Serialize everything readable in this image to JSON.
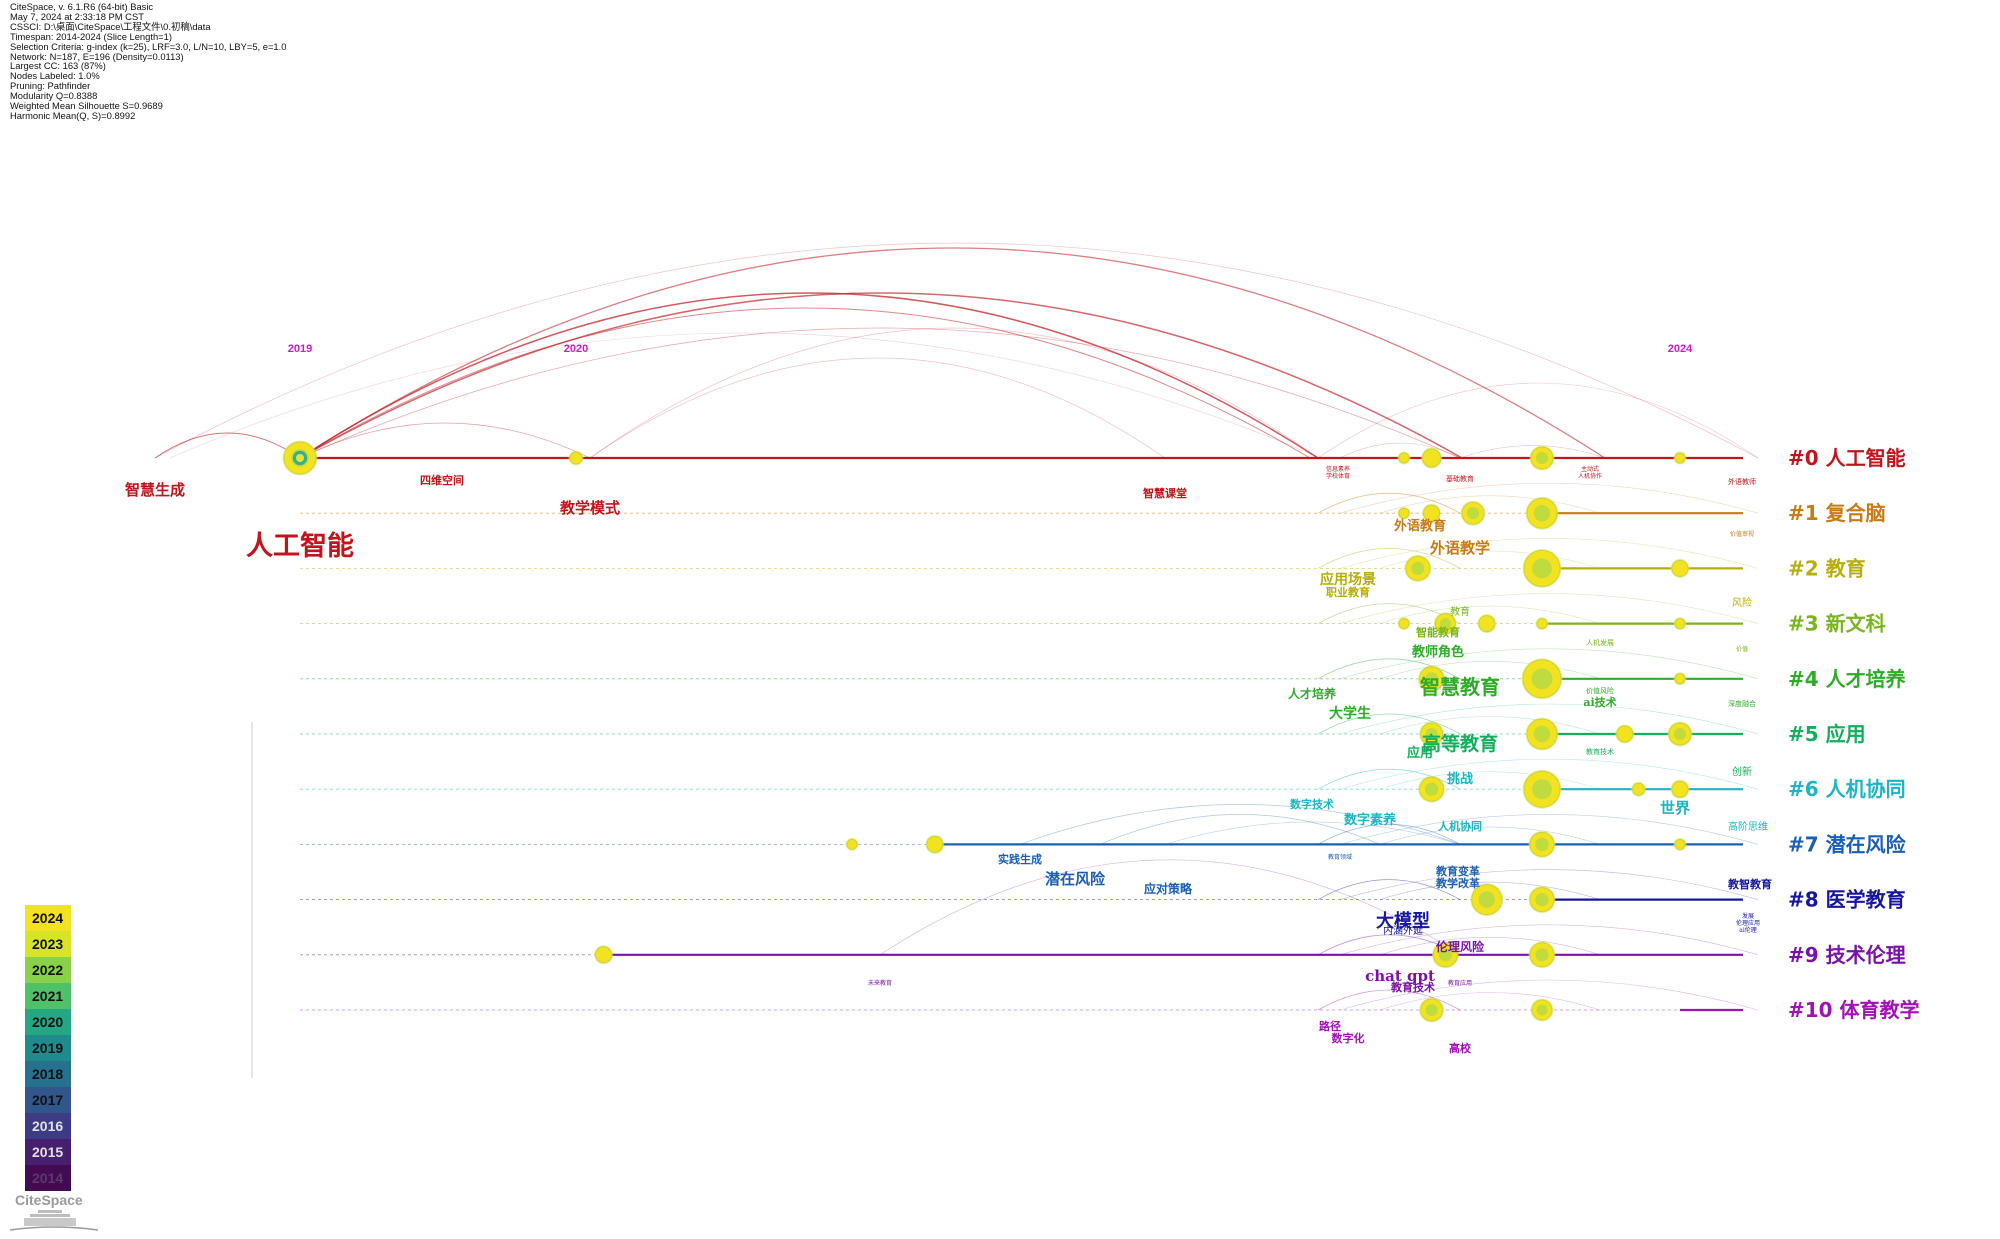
{
  "header": {
    "lines": [
      "CiteSpace, v. 6.1.R6 (64-bit) Basic",
      "May 7, 2024 at 2:33:18 PM CST",
      "CSSCI: D:\\桌面\\CiteSpace\\工程文件\\0.初稿\\data",
      "Timespan: 2014-2024 (Slice Length=1)",
      "Selection Criteria: g-index (k=25), LRF=3.0, L/N=10, LBY=5, e=1.0",
      "Network: N=187, E=196 (Density=0.0113)",
      "Largest CC: 163 (87%)",
      "Nodes Labeled: 1.0%",
      "Pruning: Pathfinder",
      "Modularity Q=0.8388",
      "Weighted Mean Silhouette S=0.9689",
      "Harmonic Mean(Q, S)=0.8992"
    ]
  },
  "timeline": {
    "year_labels": [
      {
        "text": "2019",
        "year": 2019
      },
      {
        "text": "2020",
        "year": 2020
      },
      {
        "text": "2024",
        "year": 2024
      }
    ]
  },
  "clusters": [
    {
      "id": 0,
      "label": "#0 人工智能",
      "color": "#c0151c"
    },
    {
      "id": 1,
      "label": "#1 复合脑",
      "color": "#c77b12"
    },
    {
      "id": 2,
      "label": "#2 教育",
      "color": "#b7ad0c"
    },
    {
      "id": 3,
      "label": "#3 新文科",
      "color": "#7ab51d"
    },
    {
      "id": 4,
      "label": "#4 人才培养",
      "color": "#2fab2a"
    },
    {
      "id": 5,
      "label": "#5 应用",
      "color": "#12b05c"
    },
    {
      "id": 6,
      "label": "#6 人机协同",
      "color": "#1bb5c3"
    },
    {
      "id": 7,
      "label": "#7 潜在风险",
      "color": "#1b5fb5"
    },
    {
      "id": 8,
      "label": "#8 医学教育",
      "color": "#16169e"
    },
    {
      "id": 9,
      "label": "#9 技术伦理",
      "color": "#7a12a8"
    },
    {
      "id": 10,
      "label": "#10 体育教学",
      "color": "#a012b5"
    }
  ],
  "nodes": [
    {
      "cluster": 0,
      "year": 2019,
      "size": 16,
      "label": "人工智能"
    },
    {
      "cluster": 0,
      "year": 2020,
      "size": 6,
      "label": "教学模式"
    },
    {
      "cluster": 0,
      "year": 2023,
      "size": 5,
      "label": "智慧课堂"
    },
    {
      "cluster": 0,
      "year": 2023.1,
      "size": 9,
      "label": "信息素养"
    },
    {
      "cluster": 0,
      "year": 2023.5,
      "size": 11,
      "label": "基础教育"
    },
    {
      "cluster": 0,
      "year": 2024,
      "size": 5,
      "label": "外语教师"
    },
    {
      "cluster": 1,
      "year": 2023,
      "size": 5,
      "label": ""
    },
    {
      "cluster": 1,
      "year": 2023.1,
      "size": 8,
      "label": ""
    },
    {
      "cluster": 1,
      "year": 2023.25,
      "size": 11,
      "label": "外语教育"
    },
    {
      "cluster": 1,
      "year": 2023.5,
      "size": 15,
      "label": "外语教学"
    },
    {
      "cluster": 2,
      "year": 2023.05,
      "size": 12,
      "label": "应用场景"
    },
    {
      "cluster": 2,
      "year": 2023.5,
      "size": 18,
      "label": ""
    },
    {
      "cluster": 2,
      "year": 2024,
      "size": 8,
      "label": "风险"
    },
    {
      "cluster": 3,
      "year": 2023,
      "size": 5,
      "label": ""
    },
    {
      "cluster": 3,
      "year": 2023.15,
      "size": 10,
      "label": ""
    },
    {
      "cluster": 3,
      "year": 2023.3,
      "size": 8,
      "label": "教育"
    },
    {
      "cluster": 3,
      "year": 2023.5,
      "size": 5,
      "label": "智能教育"
    },
    {
      "cluster": 3,
      "year": 2024,
      "size": 5,
      "label": "价值"
    },
    {
      "cluster": 4,
      "year": 2023.1,
      "size": 12,
      "label": "人才培养"
    },
    {
      "cluster": 4,
      "year": 2023.5,
      "size": 19,
      "label": "智慧教育"
    },
    {
      "cluster": 4,
      "year": 2024,
      "size": 5,
      "label": "深度融合"
    },
    {
      "cluster": 5,
      "year": 2023.1,
      "size": 11,
      "label": "大学生"
    },
    {
      "cluster": 5,
      "year": 2023.5,
      "size": 15,
      "label": "高等教育"
    },
    {
      "cluster": 5,
      "year": 2023.8,
      "size": 8,
      "label": "ai技术"
    },
    {
      "cluster": 5,
      "year": 2024,
      "size": 11,
      "label": "创新"
    },
    {
      "cluster": 6,
      "year": 2023.1,
      "size": 12,
      "label": "数字素养"
    },
    {
      "cluster": 6,
      "year": 2023.5,
      "size": 18,
      "label": "挑战"
    },
    {
      "cluster": 6,
      "year": 2023.85,
      "size": 6,
      "label": "世界"
    },
    {
      "cluster": 6,
      "year": 2024,
      "size": 8,
      "label": "高阶思维"
    },
    {
      "cluster": 7,
      "year": 2021,
      "size": 5,
      "label": "实践生成"
    },
    {
      "cluster": 7,
      "year": 2021.3,
      "size": 8,
      "label": "应对策略"
    },
    {
      "cluster": 7,
      "year": 2023.5,
      "size": 12,
      "label": "教育变革"
    },
    {
      "cluster": 7,
      "year": 2024,
      "size": 5,
      "label": "高阶思维"
    },
    {
      "cluster": 8,
      "year": 2023.3,
      "size": 15,
      "label": "大模型"
    },
    {
      "cluster": 8,
      "year": 2023.5,
      "size": 12,
      "label": "教智教育"
    },
    {
      "cluster": 9,
      "year": 2020.1,
      "size": 8,
      "label": "未来教育"
    },
    {
      "cluster": 9,
      "year": 2023.15,
      "size": 12,
      "label": "chat gpt"
    },
    {
      "cluster": 9,
      "year": 2023.5,
      "size": 12,
      "label": "伦理风险"
    },
    {
      "cluster": 10,
      "year": 2023.1,
      "size": 11,
      "label": "数字化"
    },
    {
      "cluster": 10,
      "year": 2023.5,
      "size": 10,
      "label": "高校"
    }
  ],
  "keyword_labels": [
    {
      "text": "智慧生成",
      "cluster": 0
    },
    {
      "text": "人工智能",
      "cluster": 0
    },
    {
      "text": "四维空间",
      "cluster": 0
    },
    {
      "text": "教学模式",
      "cluster": 0
    },
    {
      "text": "智慧课堂",
      "cluster": 0
    },
    {
      "text": "信息素养",
      "cluster": 0
    },
    {
      "text": "学校体育",
      "cluster": 0
    },
    {
      "text": "基础教育",
      "cluster": 0
    },
    {
      "text": "主动式",
      "cluster": 0
    },
    {
      "text": "人机协作",
      "cluster": 0
    },
    {
      "text": "外语教师",
      "cluster": 0
    },
    {
      "text": "外语教育",
      "cluster": 1
    },
    {
      "text": "外语教学",
      "cluster": 1
    },
    {
      "text": "价值审视",
      "cluster": 1
    },
    {
      "text": "应用场景",
      "cluster": 2
    },
    {
      "text": "职业教育",
      "cluster": 2
    },
    {
      "text": "风险",
      "cluster": 2
    },
    {
      "text": "教育",
      "cluster": 3
    },
    {
      "text": "智能教育",
      "cluster": 3
    },
    {
      "text": "人机发展",
      "cluster": 3
    },
    {
      "text": "价值",
      "cluster": 3
    },
    {
      "text": "教师角色",
      "cluster": 4
    },
    {
      "text": "智慧教育",
      "cluster": 4
    },
    {
      "text": "人才培养",
      "cluster": 4
    },
    {
      "text": "大学生",
      "cluster": 4
    },
    {
      "text": "价值风险",
      "cluster": 4
    },
    {
      "text": "ai技术",
      "cluster": 4
    },
    {
      "text": "深度融合",
      "cluster": 4
    },
    {
      "text": "高等教育",
      "cluster": 5
    },
    {
      "text": "应用",
      "cluster": 5
    },
    {
      "text": "教育技术",
      "cluster": 5
    },
    {
      "text": "创新",
      "cluster": 5
    },
    {
      "text": "挑战",
      "cluster": 6
    },
    {
      "text": "数字技术",
      "cluster": 6
    },
    {
      "text": "数字素养",
      "cluster": 6
    },
    {
      "text": "世界",
      "cluster": 6
    },
    {
      "text": "高阶思维",
      "cluster": 6
    },
    {
      "text": "人机协同",
      "cluster": 6
    },
    {
      "text": "实践生成",
      "cluster": 7
    },
    {
      "text": "潜在风险",
      "cluster": 7
    },
    {
      "text": "应对策略",
      "cluster": 7
    },
    {
      "text": "教育领域",
      "cluster": 7
    },
    {
      "text": "教育变革",
      "cluster": 7
    },
    {
      "text": "教学改革",
      "cluster": 7
    },
    {
      "text": "教智教育",
      "cluster": 8
    },
    {
      "text": "大模型",
      "cluster": 8
    },
    {
      "text": "内涵外延",
      "cluster": 8
    },
    {
      "text": "发展",
      "cluster": 8
    },
    {
      "text": "伦理应用",
      "cluster": 8
    },
    {
      "text": "ai伦理",
      "cluster": 8
    },
    {
      "text": "未来教育",
      "cluster": 9
    },
    {
      "text": "chat gpt",
      "cluster": 9
    },
    {
      "text": "伦理风险",
      "cluster": 9
    },
    {
      "text": "教育技术",
      "cluster": 9
    },
    {
      "text": "教育应用",
      "cluster": 9
    },
    {
      "text": "路径",
      "cluster": 10
    },
    {
      "text": "数字化",
      "cluster": 10
    },
    {
      "text": "高校",
      "cluster": 10
    }
  ],
  "legend": {
    "years": [
      "2024",
      "2023",
      "2022",
      "2021",
      "2020",
      "2019",
      "2018",
      "2017",
      "2016",
      "2015",
      "2014"
    ],
    "colors": [
      "#f3e21f",
      "#d6e326",
      "#8ad14a",
      "#4fc169",
      "#26a784",
      "#1f8b8d",
      "#26718e",
      "#31568b",
      "#3d3b85",
      "#46206f",
      "#440b54"
    ]
  },
  "logo": {
    "text": "CiteSpace"
  }
}
